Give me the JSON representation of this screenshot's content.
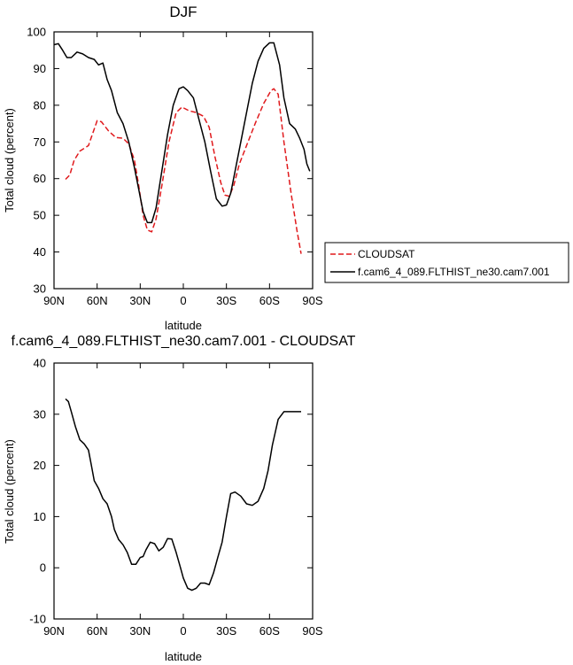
{
  "chart_data": [
    {
      "type": "line",
      "title": "DJF",
      "xlabel": "latitude",
      "ylabel": "Total cloud (percent)",
      "xlim": [
        90,
        -90
      ],
      "ylim": [
        30,
        100
      ],
      "x_ticks": [
        90,
        60,
        30,
        0,
        -30,
        -60,
        -90
      ],
      "x_tick_labels": [
        "90N",
        "60N",
        "30N",
        "0",
        "30S",
        "60S",
        "90S"
      ],
      "y_ticks": [
        30,
        40,
        50,
        60,
        70,
        80,
        90,
        100
      ],
      "y_tick_labels": [
        "30",
        "40",
        "50",
        "60",
        "70",
        "80",
        "90",
        "100"
      ],
      "legend_position": "right, outside plot",
      "series": [
        {
          "name": "CLOUDSAT",
          "color": "#e0191c",
          "dash": "dashed",
          "x": [
            82,
            79,
            76,
            72,
            66,
            60,
            57,
            52,
            47,
            42,
            38,
            34,
            31,
            28,
            25,
            22,
            19,
            15,
            10,
            5,
            1,
            -4,
            -9,
            -14,
            -18,
            -22,
            -26,
            -29,
            -32,
            -35,
            -39,
            -44,
            -50,
            -56,
            -61,
            -63,
            -66,
            -70,
            -75,
            -79,
            -82
          ],
          "y": [
            59.8,
            61,
            65,
            67.5,
            69,
            75.8,
            75.5,
            73,
            71.2,
            71,
            69.5,
            65,
            58,
            50,
            46,
            45.5,
            49,
            58,
            70,
            78,
            79.5,
            78.5,
            78,
            77,
            74,
            66,
            59,
            55.5,
            55.2,
            58,
            64,
            69,
            75,
            80.5,
            84,
            84.5,
            83,
            70,
            56,
            46,
            39.5
          ]
        },
        {
          "name": "f.cam6_4_089.FLTHIST_ne30.cam7.001",
          "color": "#000000",
          "dash": "solid",
          "x": [
            90,
            87,
            84,
            81,
            78,
            74,
            70,
            66,
            62,
            59,
            56,
            53,
            50,
            46,
            42,
            38,
            34,
            31,
            28,
            25,
            22,
            19,
            15,
            11,
            7,
            3,
            0,
            -3,
            -7,
            -11,
            -15,
            -19,
            -23,
            -27,
            -30,
            -33,
            -36,
            -40,
            -44,
            -48,
            -52,
            -56,
            -60,
            -63,
            -67,
            -70,
            -74,
            -78,
            -81,
            -84,
            -86,
            -88
          ],
          "y": [
            96.5,
            96.8,
            95,
            93,
            93,
            94.5,
            94,
            93,
            92.5,
            91,
            91.5,
            87,
            84,
            78,
            75,
            70,
            63,
            57,
            51,
            48,
            48,
            52,
            62,
            72,
            80,
            84.5,
            85,
            84,
            82,
            76,
            70,
            62,
            54.5,
            52.5,
            52.8,
            56,
            62,
            70,
            78,
            86,
            92,
            95.5,
            97,
            97,
            91,
            82,
            75,
            73.5,
            71,
            68,
            64,
            62
          ]
        }
      ]
    },
    {
      "type": "line",
      "title": "f.cam6_4_089.FLTHIST_ne30.cam7.001 - CLOUDSAT",
      "xlabel": "latitude",
      "ylabel": "Total cloud (percent)",
      "xlim": [
        90,
        -90
      ],
      "ylim": [
        -10,
        40
      ],
      "x_ticks": [
        90,
        60,
        30,
        0,
        -30,
        -60,
        -90
      ],
      "x_tick_labels": [
        "90N",
        "60N",
        "30N",
        "0",
        "30S",
        "60S",
        "90S"
      ],
      "y_ticks": [
        -10,
        0,
        10,
        20,
        30,
        40
      ],
      "y_tick_labels": [
        "-10",
        "0",
        "10",
        "20",
        "30",
        "40"
      ],
      "series": [
        {
          "color": "#000000",
          "dash": "solid",
          "x": [
            82,
            80,
            78,
            75,
            72,
            69,
            66,
            64,
            62,
            59,
            56,
            53,
            50,
            48,
            45,
            42,
            39,
            36,
            33,
            30,
            28,
            26,
            23,
            20,
            17,
            14,
            11,
            8,
            5,
            2,
            0,
            -3,
            -6,
            -9,
            -12,
            -15,
            -18,
            -21,
            -24,
            -27,
            -30,
            -33,
            -36,
            -40,
            -44,
            -48,
            -52,
            -56,
            -59,
            -62,
            -66,
            -70,
            -74,
            -78,
            -81,
            -82
          ],
          "y": [
            33,
            32.5,
            30.5,
            27.5,
            25,
            24.2,
            23,
            20,
            17,
            15.5,
            13.5,
            12.5,
            10,
            7.5,
            5.5,
            4.5,
            3,
            0.7,
            0.7,
            2,
            2.2,
            3.5,
            5,
            4.7,
            3.3,
            4,
            5.7,
            5.6,
            3,
            0,
            -2,
            -4,
            -4.4,
            -4,
            -3,
            -3,
            -3.3,
            -1,
            2,
            5,
            10,
            14.5,
            14.8,
            14,
            12.5,
            12.2,
            13,
            15.5,
            19,
            24,
            29,
            30.5,
            30.5,
            30.5,
            30.5,
            30.5
          ]
        }
      ]
    }
  ]
}
